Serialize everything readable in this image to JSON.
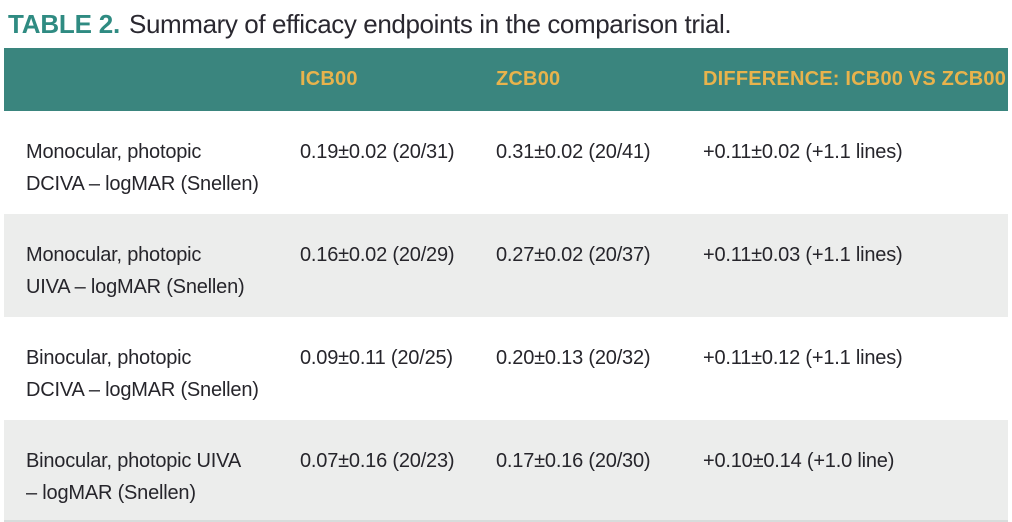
{
  "title": {
    "tag": "TABLE 2.",
    "text": "Summary of efficacy endpoints in the comparison trial."
  },
  "colors": {
    "header_teal": "#3a857e",
    "header_gold": "#e8b34c",
    "title_teal": "#2f8b82",
    "row_alt_gray": "#ecedec",
    "body_text": "#26252b"
  },
  "table": {
    "columns": {
      "endpoint": "",
      "icb00": "ICB00",
      "zcb00": "ZCB00",
      "difference": "DIFFERENCE: ICB00 VS ZCB00"
    },
    "rows": [
      {
        "label": "Monocular, photopic\nDCIVA – logMAR (Snellen)",
        "icb00": "0.19±0.02 (20/31)",
        "zcb00": "0.31±0.02 (20/41)",
        "difference": "+0.11±0.02 (+1.1 lines)"
      },
      {
        "label": "Monocular, photopic\nUIVA – logMAR (Snellen)",
        "icb00": "0.16±0.02 (20/29)",
        "zcb00": "0.27±0.02 (20/37)",
        "difference": "+0.11±0.03 (+1.1 lines)"
      },
      {
        "label": "Binocular, photopic\nDCIVA – logMAR (Snellen)",
        "icb00": "0.09±0.11 (20/25)",
        "zcb00": "0.20±0.13 (20/32)",
        "difference": "+0.11±0.12 (+1.1 lines)"
      },
      {
        "label": "Binocular, photopic UIVA\n– logMAR (Snellen)",
        "icb00": "0.07±0.16 (20/23)",
        "zcb00": "0.17±0.16 (20/30)",
        "difference": "+0.10±0.14 (+1.0 line)"
      }
    ]
  }
}
